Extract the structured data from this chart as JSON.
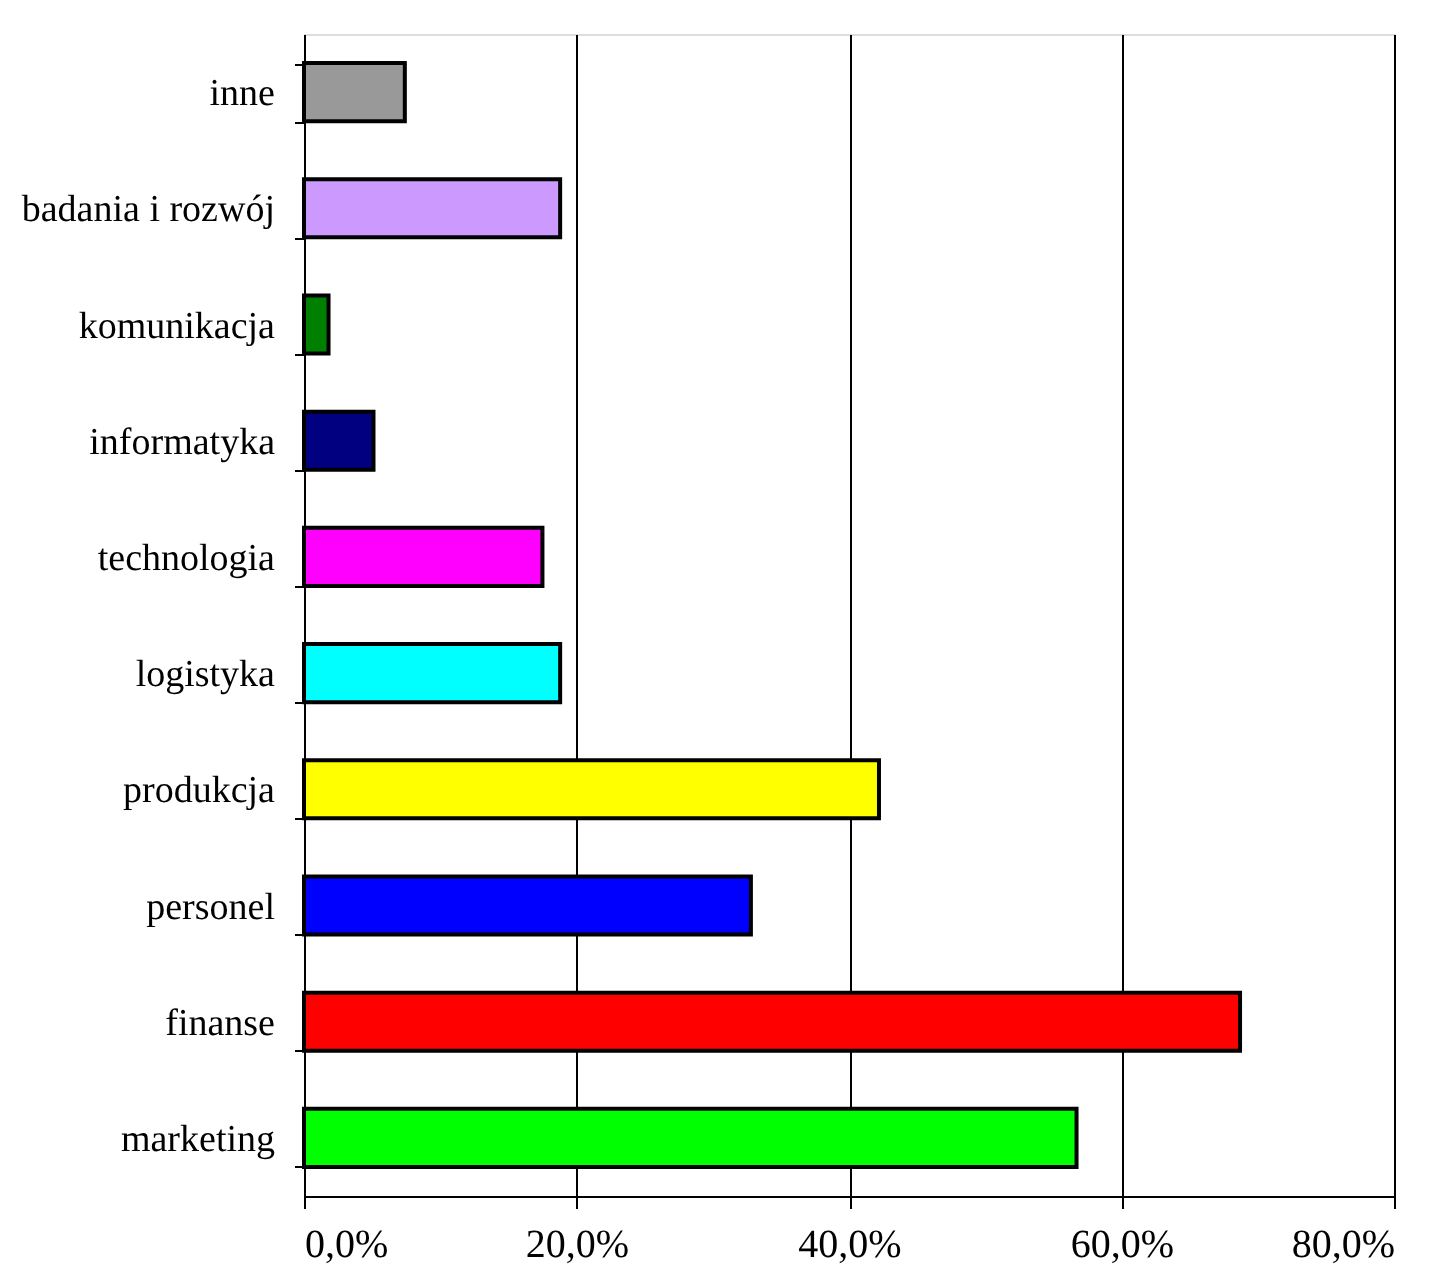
{
  "chart_data": {
    "type": "bar",
    "orientation": "horizontal",
    "categories": [
      "inne",
      "badania i rozwój",
      "komunikacja",
      "informatyka",
      "technologia",
      "logistyka",
      "produkcja",
      "personel",
      "finanse",
      "marketing"
    ],
    "values": [
      7.4,
      18.8,
      1.8,
      5.1,
      17.5,
      18.8,
      42.2,
      32.8,
      68.7,
      56.7
    ],
    "colors": [
      "#999999",
      "#cc99ff",
      "#008000",
      "#000080",
      "#ff00ff",
      "#00ffff",
      "#ffff00",
      "#0000ff",
      "#ff0000",
      "#00ff00"
    ],
    "xlim": [
      0,
      80
    ],
    "xticks": [
      {
        "value": 0,
        "label": "0,0%"
      },
      {
        "value": 20,
        "label": "20,0%"
      },
      {
        "value": 40,
        "label": "40,0%"
      },
      {
        "value": 60,
        "label": "60,0%"
      },
      {
        "value": 80,
        "label": "80,0%"
      }
    ],
    "grid": "x"
  }
}
